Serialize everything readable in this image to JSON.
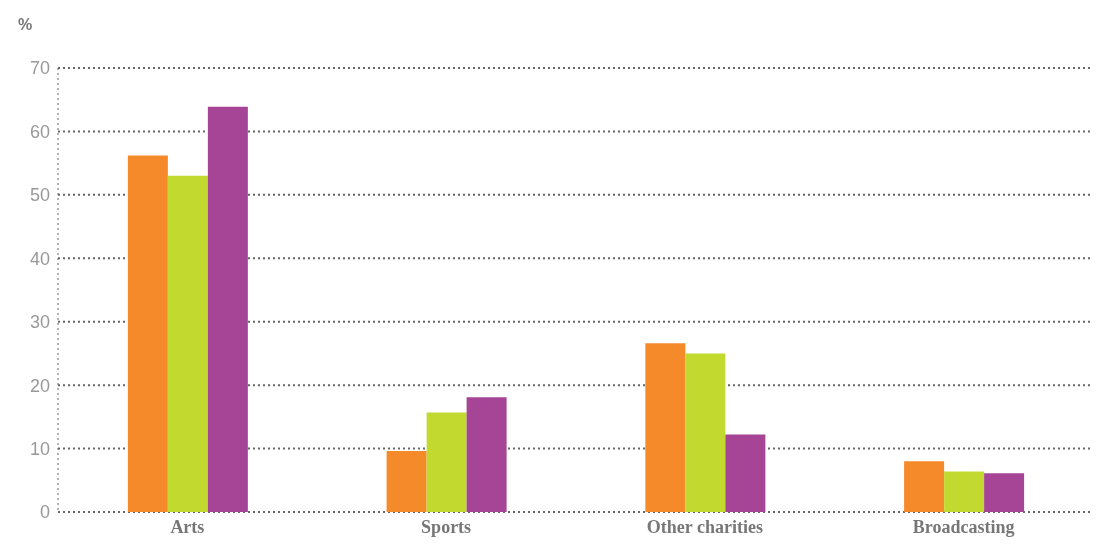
{
  "chart_data": {
    "type": "bar",
    "ylabel": "%",
    "categories": [
      "Arts",
      "Sports",
      "Other charities",
      "Broadcasting"
    ],
    "series": [
      {
        "color": "#f58a2a",
        "values": [
          56.2,
          9.6,
          26.6,
          8.0
        ]
      },
      {
        "color": "#c2d92f",
        "values": [
          53.0,
          15.7,
          25.0,
          6.4
        ]
      },
      {
        "color": "#a64495",
        "values": [
          63.9,
          18.1,
          12.2,
          6.1
        ]
      }
    ],
    "ylim": [
      0,
      70
    ],
    "yticks": [
      0,
      10,
      20,
      30,
      40,
      50,
      60,
      70
    ],
    "grid": "y",
    "legend": false
  }
}
